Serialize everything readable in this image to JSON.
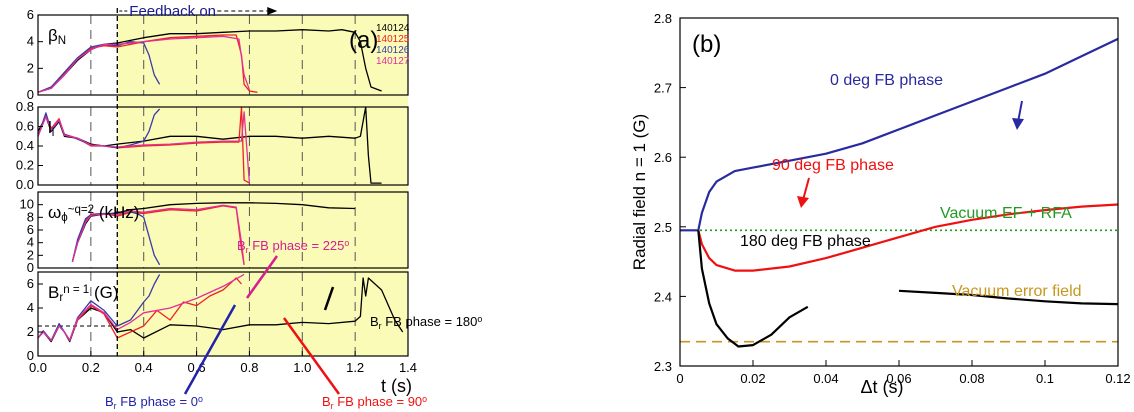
{
  "chart_data": [
    {
      "type": "line",
      "panel_label": "(a)",
      "x_axis": {
        "label": "t (s)",
        "range": [
          0.0,
          1.4
        ],
        "ticks": [
          "0.0",
          "0.2",
          "0.4",
          "0.6",
          "0.8",
          "1.0",
          "1.2",
          "1.4"
        ]
      },
      "feedback_annotation": "Feedback on",
      "feedback_start": 0.3,
      "shots": [
        {
          "label": "140124",
          "color": "#000000"
        },
        {
          "label": "140125",
          "color": "#ee2222"
        },
        {
          "label": "140126",
          "color": "#3a3aa8"
        },
        {
          "label": "140127",
          "color": "#e0309a"
        }
      ],
      "panels": [
        {
          "ylabel": {
            "base": "β",
            "sub": "N",
            "sup": "",
            "suffix": ""
          },
          "ylim": [
            0,
            6
          ],
          "yticks": [
            "0",
            "2",
            "4",
            "6"
          ],
          "series": [
            {
              "shot": "140124",
              "x": [
                0.0,
                0.05,
                0.1,
                0.15,
                0.2,
                0.25,
                0.3,
                0.4,
                0.5,
                0.6,
                0.7,
                0.8,
                0.9,
                1.0,
                1.1,
                1.15,
                1.2,
                1.22,
                1.24,
                1.26,
                1.3
              ],
              "y": [
                0.2,
                0.5,
                1.5,
                2.6,
                3.4,
                3.8,
                3.9,
                4.3,
                4.6,
                4.6,
                4.7,
                4.8,
                4.8,
                4.9,
                4.8,
                4.9,
                4.7,
                4.0,
                2.0,
                0.6,
                0.3
              ]
            },
            {
              "shot": "140125",
              "x": [
                0.0,
                0.05,
                0.1,
                0.15,
                0.2,
                0.25,
                0.3,
                0.4,
                0.5,
                0.6,
                0.7,
                0.75,
                0.77,
                0.78,
                0.8,
                0.83
              ],
              "y": [
                0.2,
                0.6,
                1.6,
                2.7,
                3.5,
                3.7,
                3.6,
                4.0,
                4.3,
                4.4,
                4.5,
                4.5,
                3.0,
                0.8,
                0.3,
                0.2
              ]
            },
            {
              "shot": "140126",
              "x": [
                0.0,
                0.05,
                0.1,
                0.15,
                0.2,
                0.25,
                0.3,
                0.35,
                0.4,
                0.42,
                0.44,
                0.46
              ],
              "y": [
                0.2,
                0.6,
                1.7,
                2.8,
                3.6,
                3.8,
                3.7,
                4.0,
                3.9,
                3.0,
                1.5,
                0.8
              ]
            },
            {
              "shot": "140127",
              "x": [
                0.0,
                0.05,
                0.1,
                0.15,
                0.2,
                0.25,
                0.3,
                0.4,
                0.5,
                0.6,
                0.7,
                0.76,
                0.78,
                0.8
              ],
              "y": [
                0.2,
                0.5,
                1.5,
                2.7,
                3.4,
                3.8,
                3.8,
                4.0,
                4.2,
                4.3,
                4.4,
                4.2,
                1.5,
                0.4
              ]
            }
          ]
        },
        {
          "ylabel": {
            "base": "l",
            "sub": "i",
            "sup": "",
            "suffix": ""
          },
          "ylim": [
            0,
            0.8
          ],
          "yticks": [
            "0.0",
            "0.2",
            "0.4",
            "0.6",
            "0.8"
          ],
          "series": [
            {
              "shot": "140124",
              "x": [
                0.0,
                0.03,
                0.05,
                0.08,
                0.1,
                0.15,
                0.2,
                0.25,
                0.3,
                0.4,
                0.5,
                0.6,
                0.7,
                0.8,
                0.9,
                1.0,
                1.1,
                1.2,
                1.22,
                1.24,
                1.25,
                1.26,
                1.3
              ],
              "y": [
                0.55,
                0.7,
                0.55,
                0.65,
                0.5,
                0.48,
                0.42,
                0.4,
                0.42,
                0.45,
                0.5,
                0.5,
                0.47,
                0.5,
                0.5,
                0.48,
                0.5,
                0.48,
                0.5,
                0.8,
                0.3,
                0.02,
                0.02
              ]
            },
            {
              "shot": "140125",
              "x": [
                0.0,
                0.03,
                0.05,
                0.08,
                0.1,
                0.15,
                0.2,
                0.25,
                0.3,
                0.4,
                0.5,
                0.6,
                0.7,
                0.76,
                0.77,
                0.78,
                0.8
              ],
              "y": [
                0.5,
                0.72,
                0.58,
                0.68,
                0.52,
                0.48,
                0.4,
                0.4,
                0.38,
                0.4,
                0.41,
                0.43,
                0.44,
                0.44,
                0.8,
                0.05,
                0.02
              ]
            },
            {
              "shot": "140126",
              "x": [
                0.0,
                0.03,
                0.05,
                0.08,
                0.1,
                0.15,
                0.2,
                0.25,
                0.3,
                0.35,
                0.4,
                0.42,
                0.44,
                0.46
              ],
              "y": [
                0.5,
                0.74,
                0.56,
                0.66,
                0.52,
                0.47,
                0.41,
                0.4,
                0.38,
                0.41,
                0.45,
                0.55,
                0.72,
                0.78
              ]
            },
            {
              "shot": "140127",
              "x": [
                0.0,
                0.03,
                0.05,
                0.08,
                0.1,
                0.15,
                0.2,
                0.25,
                0.3,
                0.4,
                0.5,
                0.6,
                0.7,
                0.77,
                0.78,
                0.8
              ],
              "y": [
                0.5,
                0.7,
                0.57,
                0.67,
                0.51,
                0.48,
                0.41,
                0.4,
                0.39,
                0.41,
                0.42,
                0.44,
                0.45,
                0.45,
                0.75,
                0.02
              ]
            }
          ]
        },
        {
          "ylabel": {
            "base": "ω",
            "sub": "ϕ",
            "sup": "~q=2",
            "suffix": " (kHz)"
          },
          "ylim": [
            0,
            12
          ],
          "yticks": [
            "0",
            "2",
            "4",
            "6",
            "8",
            "10"
          ],
          "series": [
            {
              "shot": "140124",
              "x": [
                0.13,
                0.15,
                0.18,
                0.2,
                0.25,
                0.3,
                0.35,
                0.4,
                0.5,
                0.6,
                0.7,
                0.8,
                0.9,
                1.0,
                1.1,
                1.2
              ],
              "y": [
                1.0,
                4.0,
                7.0,
                8.2,
                8.5,
                8.7,
                9.2,
                9.4,
                10.0,
                10.2,
                10.3,
                10.3,
                10.2,
                10.0,
                9.5,
                9.4
              ]
            },
            {
              "shot": "140125",
              "x": [
                0.13,
                0.15,
                0.18,
                0.2,
                0.25,
                0.3,
                0.35,
                0.4,
                0.5,
                0.6,
                0.7,
                0.75,
                0.77,
                0.78
              ],
              "y": [
                1.0,
                4.2,
                7.5,
                8.5,
                8.6,
                8.2,
                8.8,
                8.6,
                9.2,
                9.0,
                9.8,
                9.5,
                3.0,
                0.5
              ]
            },
            {
              "shot": "140126",
              "x": [
                0.13,
                0.15,
                0.18,
                0.2,
                0.25,
                0.3,
                0.35,
                0.38,
                0.4,
                0.42,
                0.44,
                0.46
              ],
              "y": [
                1.0,
                4.5,
                7.8,
                8.4,
                8.6,
                8.5,
                8.9,
                8.5,
                8.0,
                5.0,
                2.0,
                0.5
              ]
            },
            {
              "shot": "140127",
              "x": [
                0.13,
                0.15,
                0.18,
                0.2,
                0.25,
                0.3,
                0.35,
                0.4,
                0.5,
                0.6,
                0.7,
                0.75,
                0.77,
                0.78
              ],
              "y": [
                1.0,
                4.0,
                7.2,
                8.3,
                8.5,
                8.4,
                9.0,
                8.8,
                9.4,
                9.2,
                9.9,
                9.6,
                4.0,
                0.5
              ]
            }
          ]
        },
        {
          "ylabel": {
            "base": "B",
            "sub": "r",
            "sup": "n = 1",
            "suffix": " (G)"
          },
          "ylim": [
            0,
            7
          ],
          "yticks": [
            "0",
            "2",
            "4",
            "6"
          ],
          "dashed_reference_y": 2.5,
          "series": [
            {
              "shot": "140124",
              "x": [
                0.0,
                0.02,
                0.05,
                0.08,
                0.1,
                0.12,
                0.15,
                0.2,
                0.25,
                0.3,
                0.35,
                0.4,
                0.5,
                0.6,
                0.7,
                0.8,
                0.9,
                1.0,
                1.1,
                1.2,
                1.22,
                1.23,
                1.24,
                1.25,
                1.3,
                1.35,
                1.38
              ],
              "y": [
                1.5,
                2.0,
                1.2,
                2.5,
                2.0,
                1.2,
                3.0,
                4.0,
                3.6,
                2.0,
                2.2,
                1.5,
                2.6,
                2.5,
                2.2,
                2.6,
                2.6,
                2.8,
                2.7,
                2.9,
                3.3,
                6.5,
                5.0,
                6.5,
                5.5,
                3.0,
                2.0
              ]
            },
            {
              "shot": "140125",
              "x": [
                0.0,
                0.02,
                0.05,
                0.08,
                0.1,
                0.12,
                0.15,
                0.2,
                0.25,
                0.3,
                0.35,
                0.4,
                0.45,
                0.5,
                0.55,
                0.6,
                0.65,
                0.7,
                0.75,
                0.77
              ],
              "y": [
                1.5,
                2.0,
                1.3,
                2.6,
                2.0,
                1.3,
                3.0,
                4.2,
                3.5,
                1.5,
                2.0,
                2.5,
                3.8,
                3.0,
                4.5,
                4.2,
                5.0,
                5.5,
                6.5,
                6.0
              ]
            },
            {
              "shot": "140126",
              "x": [
                0.0,
                0.02,
                0.05,
                0.08,
                0.1,
                0.12,
                0.15,
                0.2,
                0.25,
                0.3,
                0.35,
                0.4,
                0.42,
                0.44,
                0.46
              ],
              "y": [
                1.5,
                2.1,
                1.3,
                2.7,
                2.0,
                1.3,
                3.2,
                4.6,
                3.8,
                2.5,
                3.0,
                4.5,
                5.0,
                6.0,
                6.8
              ]
            },
            {
              "shot": "140127",
              "x": [
                0.0,
                0.02,
                0.05,
                0.08,
                0.1,
                0.12,
                0.15,
                0.2,
                0.25,
                0.3,
                0.35,
                0.4,
                0.5,
                0.6,
                0.7,
                0.78
              ],
              "y": [
                1.5,
                2.0,
                1.3,
                2.5,
                2.0,
                1.3,
                3.1,
                4.3,
                3.6,
                2.2,
                2.8,
                3.6,
                4.0,
                4.8,
                5.8,
                6.8
              ]
            }
          ]
        }
      ],
      "annotations": [
        {
          "text": "B",
          "sub": "r",
          "rest": " FB phase = 225",
          "sup": "o",
          "color": "#d4208e"
        },
        {
          "text": "B",
          "sub": "r",
          "rest": " FB phase = 180",
          "sup": "o",
          "color": "#000000"
        },
        {
          "text": "B",
          "sub": "r",
          "rest": " FB phase = 0",
          "sup": "o",
          "color": "#2222aa"
        },
        {
          "text": "B",
          "sub": "r",
          "rest": " FB phase = 90",
          "sup": "o",
          "color": "#ee1111"
        }
      ]
    },
    {
      "type": "line",
      "panel_label": "(b)",
      "xlabel": "Δt (s)",
      "ylabel": "Radial field n = 1 (G)",
      "xlim": [
        0,
        0.12
      ],
      "ylim": [
        2.3,
        2.8
      ],
      "xticks": [
        "0",
        "0.02",
        "0.04",
        "0.06",
        "0.08",
        "0.1",
        "0.12"
      ],
      "yticks": [
        "2.3",
        "2.4",
        "2.5",
        "2.6",
        "2.7",
        "2.8"
      ],
      "series": [
        {
          "name": "0 deg FB phase",
          "color": "#2a2aa0",
          "x": [
            0.0,
            0.005,
            0.006,
            0.008,
            0.01,
            0.015,
            0.02,
            0.03,
            0.04,
            0.05,
            0.06,
            0.07,
            0.08,
            0.09,
            0.1,
            0.11,
            0.12
          ],
          "y": [
            2.495,
            2.495,
            2.52,
            2.55,
            2.565,
            2.58,
            2.585,
            2.595,
            2.605,
            2.62,
            2.64,
            2.66,
            2.68,
            2.7,
            2.72,
            2.745,
            2.77
          ]
        },
        {
          "name": "90 deg FB phase",
          "color": "#ee1111",
          "x": [
            0.005,
            0.006,
            0.008,
            0.01,
            0.015,
            0.02,
            0.03,
            0.04,
            0.05,
            0.06,
            0.07,
            0.08,
            0.09,
            0.1,
            0.11,
            0.12
          ],
          "y": [
            2.495,
            2.475,
            2.455,
            2.445,
            2.437,
            2.437,
            2.443,
            2.455,
            2.47,
            2.485,
            2.5,
            2.51,
            2.518,
            2.524,
            2.529,
            2.532
          ]
        },
        {
          "name": "180 deg FB phase",
          "color": "#000000",
          "x": [
            0.005,
            0.006,
            0.008,
            0.01,
            0.013,
            0.016,
            0.02,
            0.025,
            0.03,
            0.035
          ],
          "y": [
            2.495,
            2.44,
            2.39,
            2.36,
            2.34,
            2.328,
            2.33,
            2.345,
            2.37,
            2.385
          ]
        },
        {
          "name": "180 deg FB phase",
          "color": "#000000",
          "x": [
            0.06,
            0.07,
            0.08,
            0.09,
            0.1,
            0.11,
            0.12
          ],
          "y": [
            2.408,
            2.405,
            2.402,
            2.397,
            2.393,
            2.39,
            2.389
          ]
        }
      ],
      "reference_lines": [
        {
          "name": "Vacuum EF + RFA",
          "color": "#229922",
          "y": 2.495,
          "style": "dotted"
        },
        {
          "name": "Vacuum error field",
          "color": "#c8961e",
          "y": 2.335,
          "style": "dashed"
        }
      ]
    }
  ]
}
